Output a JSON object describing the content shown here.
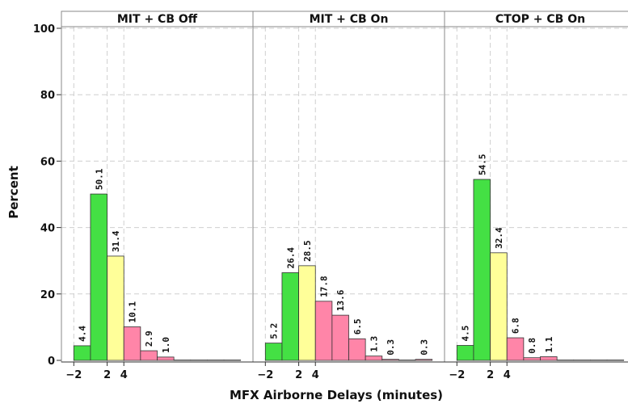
{
  "chart_data": {
    "type": "bar",
    "ylabel": "Percent",
    "xlabel": "MFX Airborne Delays (minutes)",
    "ylim": [
      0,
      100
    ],
    "yticks": [
      "0",
      "20",
      "40",
      "60",
      "80",
      "100"
    ],
    "xticks": [
      "−2",
      "2",
      "4"
    ],
    "xlim": [
      -3,
      19
    ],
    "bin_width": 2,
    "grid": true,
    "colors": {
      "green": "#44e044",
      "yellow": "#ffff99",
      "pink": "#ff85a8"
    },
    "panels": [
      {
        "title": "MIT + CB Off",
        "bins": [
          {
            "x": -2,
            "value": 4.4,
            "label": "4.4",
            "color": "green"
          },
          {
            "x": 0,
            "value": 50.1,
            "label": "50.1",
            "color": "green"
          },
          {
            "x": 2,
            "value": 31.4,
            "label": "31.4",
            "color": "yellow"
          },
          {
            "x": 4,
            "value": 10.1,
            "label": "10.1",
            "color": "pink"
          },
          {
            "x": 6,
            "value": 2.9,
            "label": "2.9",
            "color": "pink"
          },
          {
            "x": 8,
            "value": 1.0,
            "label": "1.0",
            "color": "pink"
          },
          {
            "x": 10,
            "value": 0.1,
            "color": "pink"
          },
          {
            "x": 12,
            "value": 0.1,
            "color": "pink"
          },
          {
            "x": 14,
            "value": 0.1,
            "color": "pink"
          },
          {
            "x": 16,
            "value": 0.1,
            "color": "pink"
          }
        ]
      },
      {
        "title": "MIT + CB On",
        "bins": [
          {
            "x": -2,
            "value": 5.2,
            "label": "5.2",
            "color": "green"
          },
          {
            "x": 0,
            "value": 26.4,
            "label": "26.4",
            "color": "green"
          },
          {
            "x": 2,
            "value": 28.5,
            "label": "28.5",
            "color": "yellow"
          },
          {
            "x": 4,
            "value": 17.8,
            "label": "17.8",
            "color": "pink"
          },
          {
            "x": 6,
            "value": 13.6,
            "label": "13.6",
            "color": "pink"
          },
          {
            "x": 8,
            "value": 6.5,
            "label": "6.5",
            "color": "pink"
          },
          {
            "x": 10,
            "value": 1.3,
            "label": "1.3",
            "color": "pink"
          },
          {
            "x": 12,
            "value": 0.3,
            "label": "0.3",
            "color": "pink"
          },
          {
            "x": 14,
            "value": 0.1,
            "color": "pink"
          },
          {
            "x": 16,
            "value": 0.3,
            "label": "0.3",
            "color": "pink"
          }
        ]
      },
      {
        "title": "CTOP + CB On",
        "bins": [
          {
            "x": -2,
            "value": 4.5,
            "label": "4.5",
            "color": "green"
          },
          {
            "x": 0,
            "value": 54.5,
            "label": "54.5",
            "color": "green"
          },
          {
            "x": 2,
            "value": 32.4,
            "label": "32.4",
            "color": "yellow"
          },
          {
            "x": 4,
            "value": 6.8,
            "label": "6.8",
            "color": "pink"
          },
          {
            "x": 6,
            "value": 0.8,
            "label": "0.8",
            "color": "pink"
          },
          {
            "x": 8,
            "value": 1.1,
            "label": "1.1",
            "color": "pink"
          },
          {
            "x": 10,
            "value": 0.1,
            "color": "pink"
          },
          {
            "x": 12,
            "value": 0.1,
            "color": "pink"
          },
          {
            "x": 14,
            "value": 0.1,
            "color": "pink"
          },
          {
            "x": 16,
            "value": 0.1,
            "color": "pink"
          }
        ]
      }
    ]
  }
}
